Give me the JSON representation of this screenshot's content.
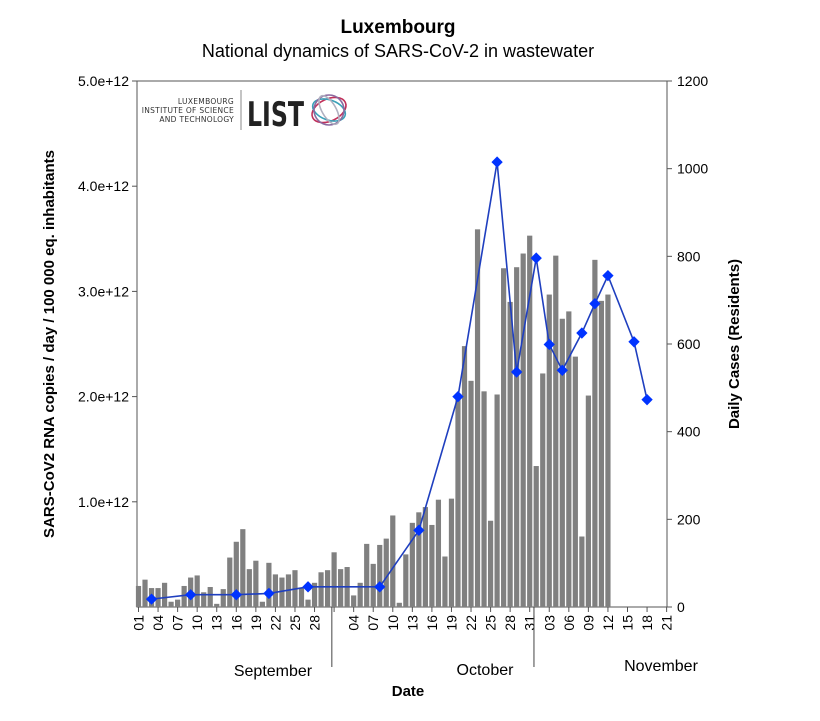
{
  "chart_data": {
    "type": "bar+line",
    "title": "Luxembourg",
    "subtitle": "National dynamics of SARS-CoV-2 in wastewater",
    "xlabel": "Date",
    "ylabel_left": "SARS-CoV2 RNA copies / day  / 100 000 eq. inhabitants",
    "ylabel_right": "Daily Cases (Residents)",
    "ylim_left": [
      0,
      5000000000000.0
    ],
    "ylim_right": [
      0,
      1200
    ],
    "yticks_left": [
      "1.0e+12",
      "2.0e+12",
      "3.0e+12",
      "4.0e+12",
      "5.0e+12"
    ],
    "yticks_right": [
      "0",
      "200",
      "400",
      "600",
      "800",
      "1000",
      "1200"
    ],
    "x_start": "2020-09-01",
    "x_end": "2020-11-21",
    "xtick_labels": [
      "01",
      "04",
      "07",
      "10",
      "13",
      "16",
      "19",
      "22",
      "25",
      "28",
      "",
      "04",
      "07",
      "10",
      "13",
      "16",
      "19",
      "22",
      "25",
      "28",
      "31",
      "03",
      "06",
      "09",
      "12",
      "15",
      "18",
      "21"
    ],
    "months": [
      "September",
      "October",
      "November"
    ],
    "grid": false,
    "bar_color": "#808080",
    "line_color": "#1f3fbf",
    "marker_color": "#0033ff",
    "bars": {
      "unit": "1e12 copies/day/100000 eq. inhabitants",
      "dates_from": "2020-09-01",
      "values": [
        0.2,
        0.26,
        0.18,
        0.18,
        0.23,
        0.05,
        0.07,
        0.2,
        0.28,
        0.3,
        0.14,
        0.19,
        0.03,
        0.17,
        0.47,
        0.62,
        0.74,
        0.36,
        0.44,
        0.05,
        0.42,
        0.31,
        0.28,
        0.31,
        0.35,
        0.18,
        0.07,
        0.23,
        0.33,
        0.35,
        0.52,
        0.36,
        0.38,
        0.11,
        0.23,
        0.6,
        0.41,
        0.59,
        0.65,
        0.87,
        0.04,
        0.5,
        0.8,
        0.9,
        0.95,
        0.78,
        1.02,
        0.48,
        1.03,
        2.0,
        2.48,
        2.15,
        3.59,
        2.05,
        0.82,
        2.02,
        3.22,
        2.9,
        3.23,
        3.36,
        3.53,
        1.34,
        2.22,
        2.97,
        3.34,
        2.74,
        2.81,
        2.38,
        0.67,
        2.01,
        3.3,
        2.91,
        2.97
      ]
    },
    "cases": [
      {
        "date": "2020-09-03",
        "value": 18
      },
      {
        "date": "2020-09-09",
        "value": 28
      },
      {
        "date": "2020-09-16",
        "value": 28
      },
      {
        "date": "2020-09-21",
        "value": 31
      },
      {
        "date": "2020-09-27",
        "value": 46
      },
      {
        "date": "2020-10-08",
        "value": 46
      },
      {
        "date": "2020-10-14",
        "value": 175
      },
      {
        "date": "2020-10-20",
        "value": 480
      },
      {
        "date": "2020-10-26",
        "value": 1015
      },
      {
        "date": "2020-10-29",
        "value": 536
      },
      {
        "date": "2020-11-01",
        "value": 796
      },
      {
        "date": "2020-11-03",
        "value": 599
      },
      {
        "date": "2020-11-05",
        "value": 540
      },
      {
        "date": "2020-11-08",
        "value": 625
      },
      {
        "date": "2020-11-10",
        "value": 692
      },
      {
        "date": "2020-11-12",
        "value": 756
      },
      {
        "date": "2020-11-16",
        "value": 605
      },
      {
        "date": "2020-11-18",
        "value": 473
      }
    ]
  },
  "logo": {
    "line1": "LUXEMBOURG",
    "line2": "INSTITUTE OF SCIENCE",
    "line3": "AND TECHNOLOGY",
    "wordmark": "LIST"
  }
}
